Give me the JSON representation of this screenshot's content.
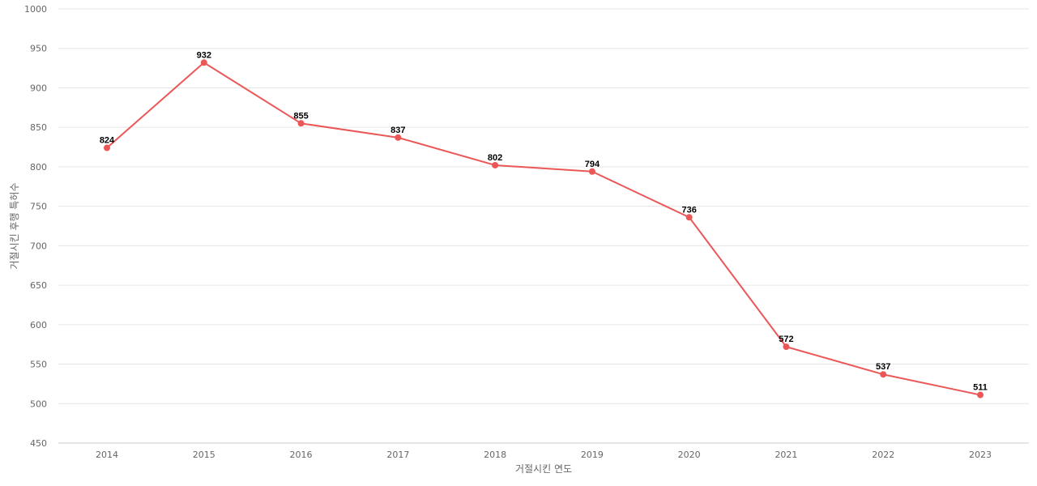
{
  "chart_data": {
    "type": "line",
    "title": "",
    "xlabel": "거절시킨 연도",
    "ylabel": "거절시킨 후행 특허수",
    "categories": [
      "2014",
      "2015",
      "2016",
      "2017",
      "2018",
      "2019",
      "2020",
      "2021",
      "2022",
      "2023"
    ],
    "series": [
      {
        "values": [
          824,
          932,
          855,
          837,
          802,
          794,
          736,
          572,
          537,
          511
        ],
        "color": "#eb5757"
      }
    ],
    "ylim": [
      450,
      1000
    ],
    "yticks": [
      450,
      500,
      550,
      600,
      650,
      700,
      750,
      800,
      850,
      900,
      950,
      1000
    ],
    "grid": true,
    "legend": "none",
    "data_labels": true
  }
}
